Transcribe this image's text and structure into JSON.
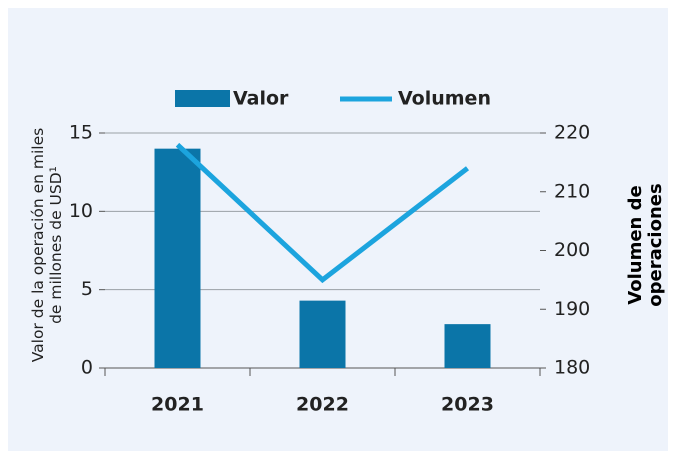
{
  "chart_data": {
    "type": "bar",
    "categories": [
      "2021",
      "2022",
      "2023"
    ],
    "series": [
      {
        "name": "Valor",
        "type": "bar",
        "color": "#0b75a8",
        "values": [
          14,
          4.3,
          2.8
        ]
      },
      {
        "name": "Volumen",
        "type": "line",
        "axis": "y2",
        "color": "#1ca4de",
        "values": [
          218,
          195,
          214
        ]
      }
    ],
    "ylabel": [
      "Valor de la operación en miles",
      "de millones de USD¹"
    ],
    "y2label": [
      "Volumen de",
      "operaciones"
    ],
    "ylim": [
      0,
      15
    ],
    "yticks": [
      0,
      5,
      10,
      15
    ],
    "y2lim": [
      180,
      220
    ],
    "y2ticks": [
      180,
      190,
      200,
      210,
      220
    ],
    "grid": true,
    "legend": "top"
  }
}
